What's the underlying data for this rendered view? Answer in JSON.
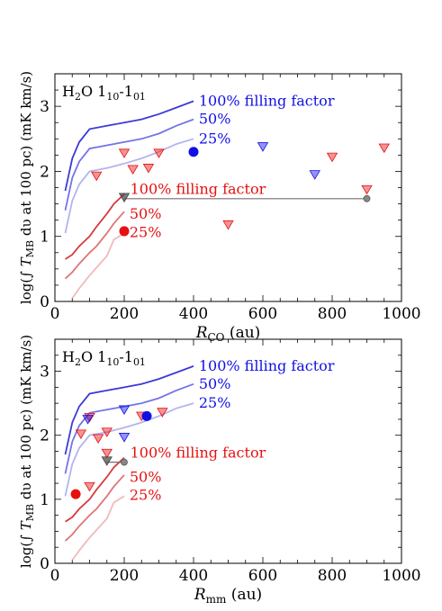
{
  "chart_data": [
    {
      "type": "line+scatter",
      "panel_label": {
        "base": "H",
        "sub1": "2",
        "mid": "O 1",
        "sub2": "10",
        "dash": "-1",
        "sub3": "01"
      },
      "xlabel": {
        "base": "R",
        "sub": "CO",
        "unit": " (au)"
      },
      "ylabel": {
        "part1": "log(∫ ",
        "T": "T",
        "sub": "MB",
        "part2": " dυ at 100 pc) (mK km/s)"
      },
      "xlim": [
        0,
        1000
      ],
      "ylim": [
        0,
        3.5
      ],
      "xticks": [
        "0",
        "200",
        "400",
        "600",
        "800",
        "1000"
      ],
      "yticks": [
        "0",
        "1",
        "2",
        "3"
      ],
      "colors": {
        "blue100": "#3b3bd6",
        "blue50": "#7474e4",
        "blue25": "#b4b4ef",
        "red100": "#d63b3b",
        "red50": "#e07575",
        "red25": "#f0baba",
        "blue_marker": "#1010e6",
        "red_marker": "#e61010",
        "gray": "#707070"
      },
      "series": [
        {
          "label": "100% filling factor",
          "group": "blue",
          "style": "blue100",
          "x": [
            30,
            50,
            70,
            100,
            150,
            200,
            250,
            300,
            350,
            400
          ],
          "y": [
            1.7,
            2.2,
            2.45,
            2.65,
            2.7,
            2.75,
            2.8,
            2.88,
            2.98,
            3.08
          ]
        },
        {
          "label": "50%",
          "group": "blue",
          "style": "blue50",
          "x": [
            30,
            50,
            70,
            100,
            150,
            200,
            250,
            300,
            350,
            400
          ],
          "y": [
            1.4,
            1.9,
            2.15,
            2.35,
            2.4,
            2.45,
            2.5,
            2.58,
            2.7,
            2.8
          ]
        },
        {
          "label": "25%",
          "group": "blue",
          "style": "blue25",
          "x": [
            30,
            50,
            70,
            100,
            150,
            200,
            250,
            300,
            350,
            400
          ],
          "y": [
            1.05,
            1.55,
            1.8,
            2.0,
            2.05,
            2.12,
            2.2,
            2.3,
            2.42,
            2.5
          ]
        },
        {
          "label": "100% filling factor",
          "group": "red",
          "style": "red100",
          "x": [
            30,
            50,
            70,
            100,
            120,
            150,
            170,
            200
          ],
          "y": [
            0.65,
            0.72,
            0.85,
            1.0,
            1.15,
            1.35,
            1.5,
            1.65
          ]
        },
        {
          "label": "50%",
          "group": "red",
          "style": "red50",
          "x": [
            30,
            50,
            70,
            100,
            120,
            150,
            170,
            200
          ],
          "y": [
            0.35,
            0.45,
            0.58,
            0.75,
            0.85,
            1.05,
            1.2,
            1.38
          ]
        },
        {
          "label": "25%",
          "group": "red",
          "style": "red25",
          "x": [
            50,
            70,
            100,
            120,
            150,
            170,
            200
          ],
          "y": [
            0.05,
            0.2,
            0.4,
            0.52,
            0.7,
            0.95,
            1.05
          ]
        }
      ],
      "upper_limits_blue": [
        {
          "x": 600,
          "y": 2.38
        },
        {
          "x": 750,
          "y": 1.95
        }
      ],
      "upper_limits_red": [
        {
          "x": 120,
          "y": 1.93
        },
        {
          "x": 200,
          "y": 2.28
        },
        {
          "x": 225,
          "y": 2.03
        },
        {
          "x": 270,
          "y": 2.05
        },
        {
          "x": 300,
          "y": 2.28
        },
        {
          "x": 500,
          "y": 1.18
        },
        {
          "x": 800,
          "y": 2.22
        },
        {
          "x": 900,
          "y": 1.72
        },
        {
          "x": 950,
          "y": 2.36
        }
      ],
      "gray_limits": [
        {
          "x": 200,
          "y": 1.6
        }
      ],
      "gray_line": {
        "x": [
          200,
          900
        ],
        "y": [
          1.58,
          1.58
        ]
      },
      "gray_points": [
        {
          "x": 900,
          "y": 1.58
        }
      ],
      "detections": [
        {
          "x": 400,
          "y": 2.3,
          "style": "blue_marker"
        },
        {
          "x": 200,
          "y": 1.08,
          "style": "red_marker"
        }
      ]
    },
    {
      "type": "line+scatter",
      "panel_label": {
        "base": "H",
        "sub1": "2",
        "mid": "O 1",
        "sub2": "10",
        "dash": "-1",
        "sub3": "01"
      },
      "xlabel": {
        "base": "R",
        "sub": "mm",
        "unit": " (au)"
      },
      "ylabel": {
        "part1": "log(∫ ",
        "T": "T",
        "sub": "MB",
        "part2": " dυ at 100 pc) (mK km/s)"
      },
      "xlim": [
        0,
        1000
      ],
      "ylim": [
        0,
        3.5
      ],
      "xticks": [
        "0",
        "200",
        "400",
        "600",
        "800",
        "1000"
      ],
      "yticks": [
        "0",
        "1",
        "2",
        "3"
      ],
      "colors": {
        "blue100": "#3b3bd6",
        "blue50": "#7474e4",
        "blue25": "#b4b4ef",
        "red100": "#d63b3b",
        "red50": "#e07575",
        "red25": "#f0baba",
        "blue_marker": "#1010e6",
        "red_marker": "#e61010",
        "gray": "#707070"
      },
      "series": [
        {
          "label": "100% filling factor",
          "group": "blue",
          "style": "blue100",
          "x": [
            30,
            50,
            70,
            100,
            150,
            200,
            250,
            300,
            350,
            400
          ],
          "y": [
            1.7,
            2.2,
            2.45,
            2.65,
            2.7,
            2.75,
            2.8,
            2.88,
            2.98,
            3.08
          ]
        },
        {
          "label": "50%",
          "group": "blue",
          "style": "blue50",
          "x": [
            30,
            50,
            70,
            100,
            150,
            200,
            250,
            300,
            350,
            400
          ],
          "y": [
            1.4,
            1.9,
            2.15,
            2.35,
            2.4,
            2.45,
            2.5,
            2.58,
            2.7,
            2.8
          ]
        },
        {
          "label": "25%",
          "group": "blue",
          "style": "blue25",
          "x": [
            30,
            50,
            70,
            100,
            150,
            200,
            250,
            300,
            350,
            400
          ],
          "y": [
            1.05,
            1.55,
            1.8,
            2.0,
            2.05,
            2.12,
            2.2,
            2.3,
            2.42,
            2.5
          ]
        },
        {
          "label": "100% filling factor",
          "group": "red",
          "style": "red100",
          "x": [
            30,
            50,
            70,
            100,
            120,
            150,
            170,
            200
          ],
          "y": [
            0.65,
            0.72,
            0.85,
            1.0,
            1.15,
            1.35,
            1.5,
            1.65
          ]
        },
        {
          "label": "50%",
          "group": "red",
          "style": "red50",
          "x": [
            30,
            50,
            70,
            100,
            120,
            150,
            170,
            200
          ],
          "y": [
            0.35,
            0.45,
            0.58,
            0.75,
            0.85,
            1.05,
            1.2,
            1.38
          ]
        },
        {
          "label": "25%",
          "group": "red",
          "style": "red25",
          "x": [
            50,
            70,
            100,
            120,
            150,
            170,
            200
          ],
          "y": [
            0.05,
            0.2,
            0.4,
            0.52,
            0.7,
            0.95,
            1.05
          ]
        }
      ],
      "upper_limits_blue": [
        {
          "x": 95,
          "y": 2.25
        },
        {
          "x": 200,
          "y": 2.4
        },
        {
          "x": 200,
          "y": 1.97
        }
      ],
      "upper_limits_red": [
        {
          "x": 75,
          "y": 2.02
        },
        {
          "x": 100,
          "y": 2.28
        },
        {
          "x": 100,
          "y": 1.2
        },
        {
          "x": 125,
          "y": 1.95
        },
        {
          "x": 150,
          "y": 2.05
        },
        {
          "x": 150,
          "y": 1.72
        },
        {
          "x": 250,
          "y": 2.3
        },
        {
          "x": 310,
          "y": 2.36
        }
      ],
      "gray_limits": [
        {
          "x": 150,
          "y": 1.6
        }
      ],
      "gray_line": {
        "x": [
          150,
          200
        ],
        "y": [
          1.58,
          1.58
        ]
      },
      "gray_points": [
        {
          "x": 200,
          "y": 1.58
        }
      ],
      "detections": [
        {
          "x": 265,
          "y": 2.3,
          "style": "blue_marker"
        },
        {
          "x": 60,
          "y": 1.08,
          "style": "red_marker"
        }
      ]
    }
  ]
}
